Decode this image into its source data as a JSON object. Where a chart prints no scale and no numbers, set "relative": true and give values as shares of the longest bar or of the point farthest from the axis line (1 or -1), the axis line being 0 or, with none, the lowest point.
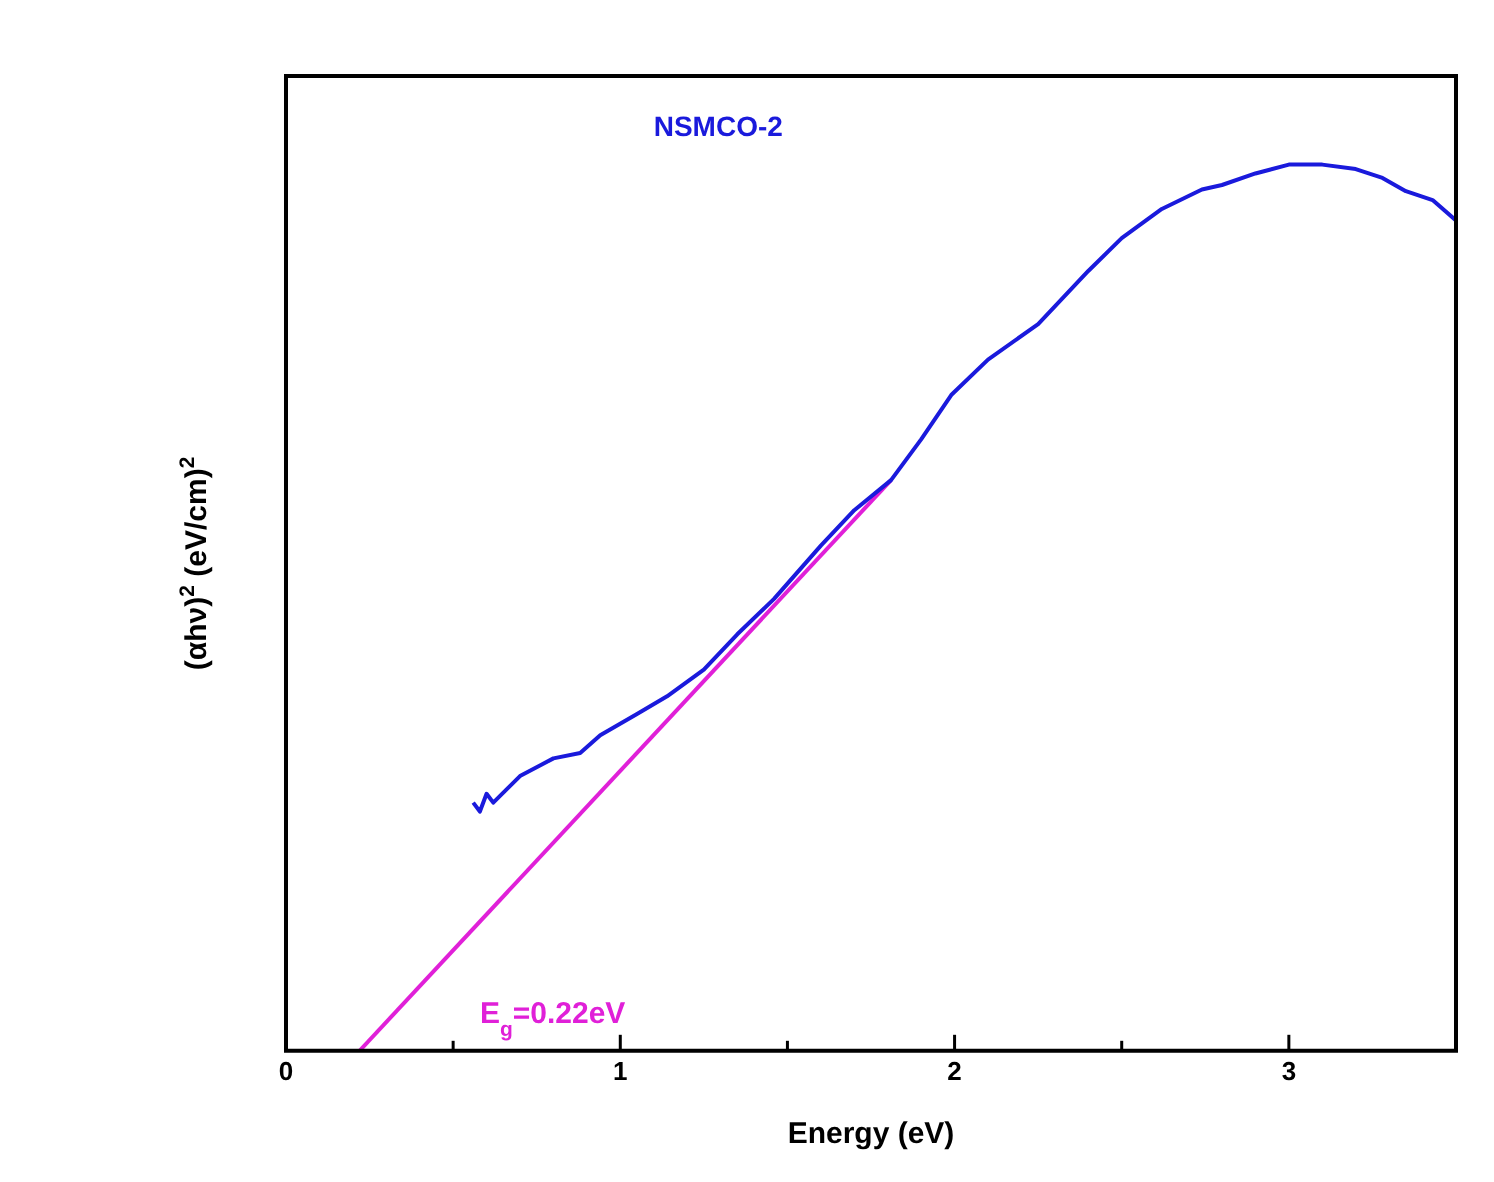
{
  "chart_data": {
    "type": "line",
    "xlabel": "Energy (eV)",
    "ylabel": "(αhν)$^{2}$ (eV/cm)$^{2}$",
    "relative": true,
    "xlim": [
      0,
      3.5
    ],
    "xticks": [
      0,
      {
        "value": 0.5,
        "label": null
      },
      1,
      {
        "value": 1.5,
        "label": null
      },
      2,
      {
        "value": 2.5,
        "label": null
      },
      3
    ],
    "tick_labels": "x",
    "grid": false,
    "legend": false,
    "marker": "none",
    "line_style": "solid",
    "annotations": [
      "E$_{g}$=0.22eV"
    ],
    "series": [
      {
        "name": "NSMCO-2",
        "color": "#1a1adc",
        "x": [
          0.56,
          0.58,
          0.6,
          0.62,
          0.7,
          0.8,
          0.88,
          0.94,
          1.05,
          1.14,
          1.25,
          1.35,
          1.46,
          1.6,
          1.7,
          1.81,
          1.9,
          1.99,
          2.1,
          2.25,
          2.4,
          2.5,
          2.62,
          2.74,
          2.8,
          2.9,
          3.0,
          3.1,
          3.2,
          3.28,
          3.35,
          3.43,
          3.5
        ],
        "values": [
          0.28,
          0.27,
          0.29,
          0.28,
          0.31,
          0.33,
          0.336,
          0.356,
          0.38,
          0.4,
          0.43,
          0.47,
          0.51,
          0.57,
          0.61,
          0.644,
          0.69,
          0.74,
          0.78,
          0.82,
          0.88,
          0.917,
          0.95,
          0.972,
          0.977,
          0.99,
          1.0,
          1.0,
          0.995,
          0.985,
          0.97,
          0.96,
          0.937
        ]
      },
      {
        "color": "#e020d8",
        "x": [
          0.22,
          1.81
        ],
        "values": [
          0,
          0.644
        ]
      }
    ]
  }
}
